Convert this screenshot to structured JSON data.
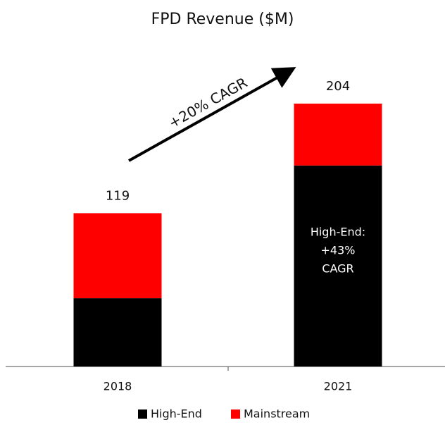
{
  "chart_data": {
    "type": "stacked_bar",
    "title": "FPD Revenue ($M)",
    "categories": [
      "2018",
      "2021"
    ],
    "series": [
      {
        "name": "High-End",
        "color": "#000000",
        "values": [
          53,
          156
        ]
      },
      {
        "name": "Mainstream",
        "color": "#ff0000",
        "values": [
          66,
          48
        ]
      }
    ],
    "totals": [
      119,
      204
    ],
    "ylim": [
      0,
      230
    ],
    "annotations": [
      "+20% CAGR",
      "High-End:",
      "+43%",
      "CAGR"
    ]
  }
}
